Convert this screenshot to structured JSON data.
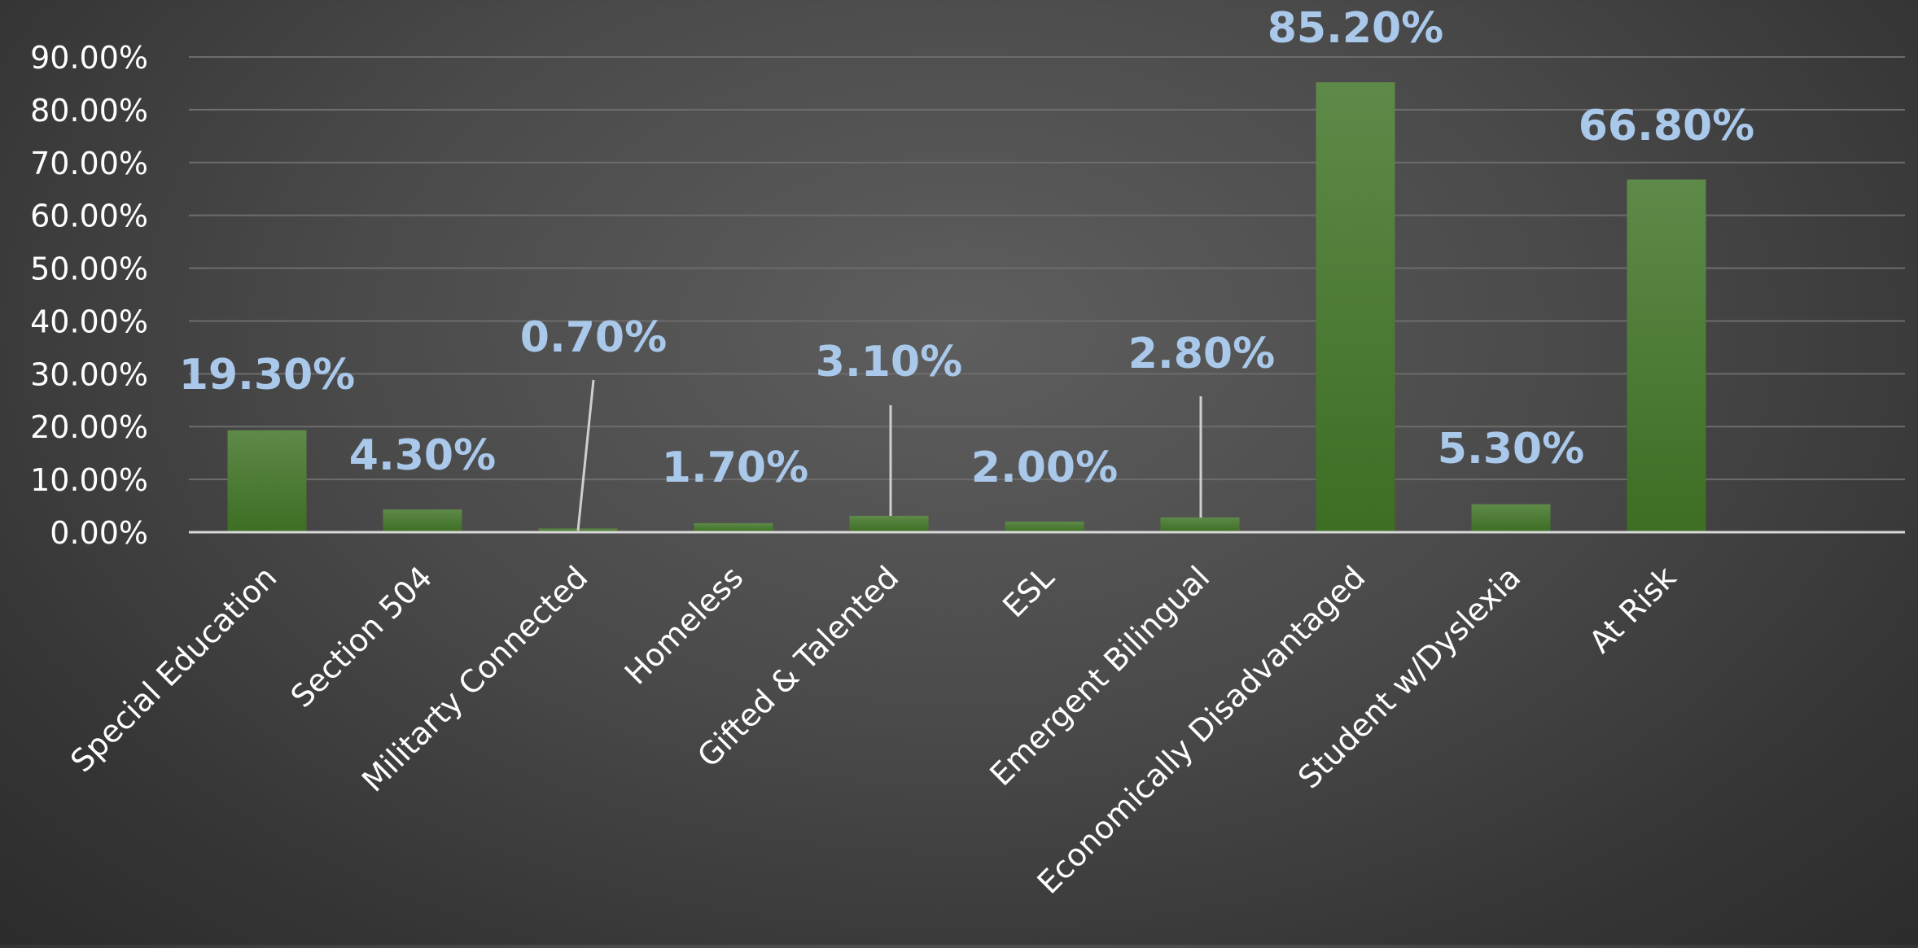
{
  "chart_data": {
    "type": "bar",
    "categories": [
      "Special Education",
      "Section 504",
      "Militarty Connected",
      "Homeless",
      "Gifted & Talented",
      "ESL",
      "Emergent Bilingual",
      "Economically Disadvantaged",
      "Student w/Dyslexia",
      "At Risk"
    ],
    "values": [
      19.3,
      4.3,
      0.7,
      1.7,
      3.1,
      2.0,
      2.8,
      85.2,
      5.3,
      66.8
    ],
    "data_labels": [
      "19.30%",
      "4.30%",
      "0.70%",
      "1.70%",
      "3.10%",
      "2.00%",
      "2.80%",
      "85.20%",
      "5.30%",
      "66.80%"
    ],
    "y_ticks": [
      "0.00%",
      "10.00%",
      "20.00%",
      "30.00%",
      "40.00%",
      "50.00%",
      "60.00%",
      "70.00%",
      "80.00%",
      "90.00%"
    ],
    "ylim": [
      0,
      90
    ],
    "grid": true,
    "legend": "none",
    "colors": {
      "bar_top": "#5e8a49",
      "bar_bottom": "#3d6e23",
      "data_label": "#a9c8ea",
      "tick_label": "#ffffff",
      "category_label": "#ffffff",
      "gridline": "#6c6c6c",
      "axis": "#d8d8d8",
      "leader_line": "#cfcfcf"
    }
  }
}
